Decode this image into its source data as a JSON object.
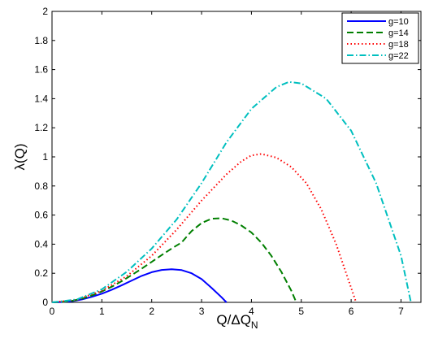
{
  "chart_data": {
    "type": "line",
    "xlabel_main": "Q/ΔQ",
    "xlabel_sub": "N",
    "ylabel": "λ(Q)",
    "xlim": [
      0,
      7.4
    ],
    "ylim": [
      0,
      2
    ],
    "x_ticks": [
      0,
      1,
      2,
      3,
      4,
      5,
      6,
      7
    ],
    "y_ticks": [
      0,
      0.2,
      0.4,
      0.6,
      0.8,
      1,
      1.2,
      1.4,
      1.6,
      1.8,
      2
    ],
    "grid": false,
    "legend_position": "top-right",
    "series": [
      {
        "name": "g=10",
        "color": "#0000ff",
        "line_style": "solid",
        "x": [
          0,
          0.2,
          0.4,
          0.6,
          0.8,
          1.0,
          1.2,
          1.4,
          1.6,
          1.8,
          2.0,
          2.2,
          2.4,
          2.6,
          2.8,
          3.0,
          3.2,
          3.4,
          3.5
        ],
        "y": [
          0,
          0.002,
          0.008,
          0.02,
          0.038,
          0.06,
          0.087,
          0.118,
          0.15,
          0.182,
          0.207,
          0.223,
          0.228,
          0.222,
          0.2,
          0.16,
          0.1,
          0.035,
          0
        ]
      },
      {
        "name": "g=14",
        "color": "#007f00",
        "line_style": "dashed",
        "x": [
          0,
          0.2,
          0.4,
          0.6,
          0.8,
          1.0,
          1.2,
          1.4,
          1.6,
          1.8,
          2.0,
          2.2,
          2.4,
          2.6,
          2.8,
          3.0,
          3.2,
          3.4,
          3.6,
          3.8,
          4.0,
          4.2,
          4.4,
          4.6,
          4.8,
          4.9
        ],
        "y": [
          0,
          0.003,
          0.01,
          0.025,
          0.047,
          0.075,
          0.108,
          0.146,
          0.188,
          0.232,
          0.278,
          0.325,
          0.37,
          0.412,
          0.49,
          0.545,
          0.575,
          0.578,
          0.562,
          0.528,
          0.48,
          0.41,
          0.32,
          0.21,
          0.08,
          0
        ]
      },
      {
        "name": "g=18",
        "color": "#ff0000",
        "line_style": "dotted",
        "x": [
          0,
          0.5,
          1.0,
          1.5,
          2.0,
          2.5,
          3.0,
          3.5,
          3.8,
          4.0,
          4.2,
          4.5,
          4.8,
          5.1,
          5.4,
          5.7,
          6.0,
          6.1
        ],
        "y": [
          0,
          0.018,
          0.08,
          0.18,
          0.32,
          0.5,
          0.7,
          0.88,
          0.97,
          1.01,
          1.02,
          0.995,
          0.93,
          0.82,
          0.64,
          0.4,
          0.1,
          0
        ]
      },
      {
        "name": "g=22",
        "color": "#00bfbf",
        "line_style": "dashdot",
        "x": [
          0,
          0.5,
          1.0,
          1.5,
          2.0,
          2.5,
          3.0,
          3.5,
          4.0,
          4.5,
          4.75,
          5.0,
          5.5,
          6.0,
          6.5,
          7.0,
          7.2
        ],
        "y": [
          0,
          0.02,
          0.09,
          0.21,
          0.37,
          0.57,
          0.82,
          1.1,
          1.33,
          1.48,
          1.515,
          1.505,
          1.4,
          1.18,
          0.82,
          0.32,
          0
        ]
      }
    ]
  }
}
